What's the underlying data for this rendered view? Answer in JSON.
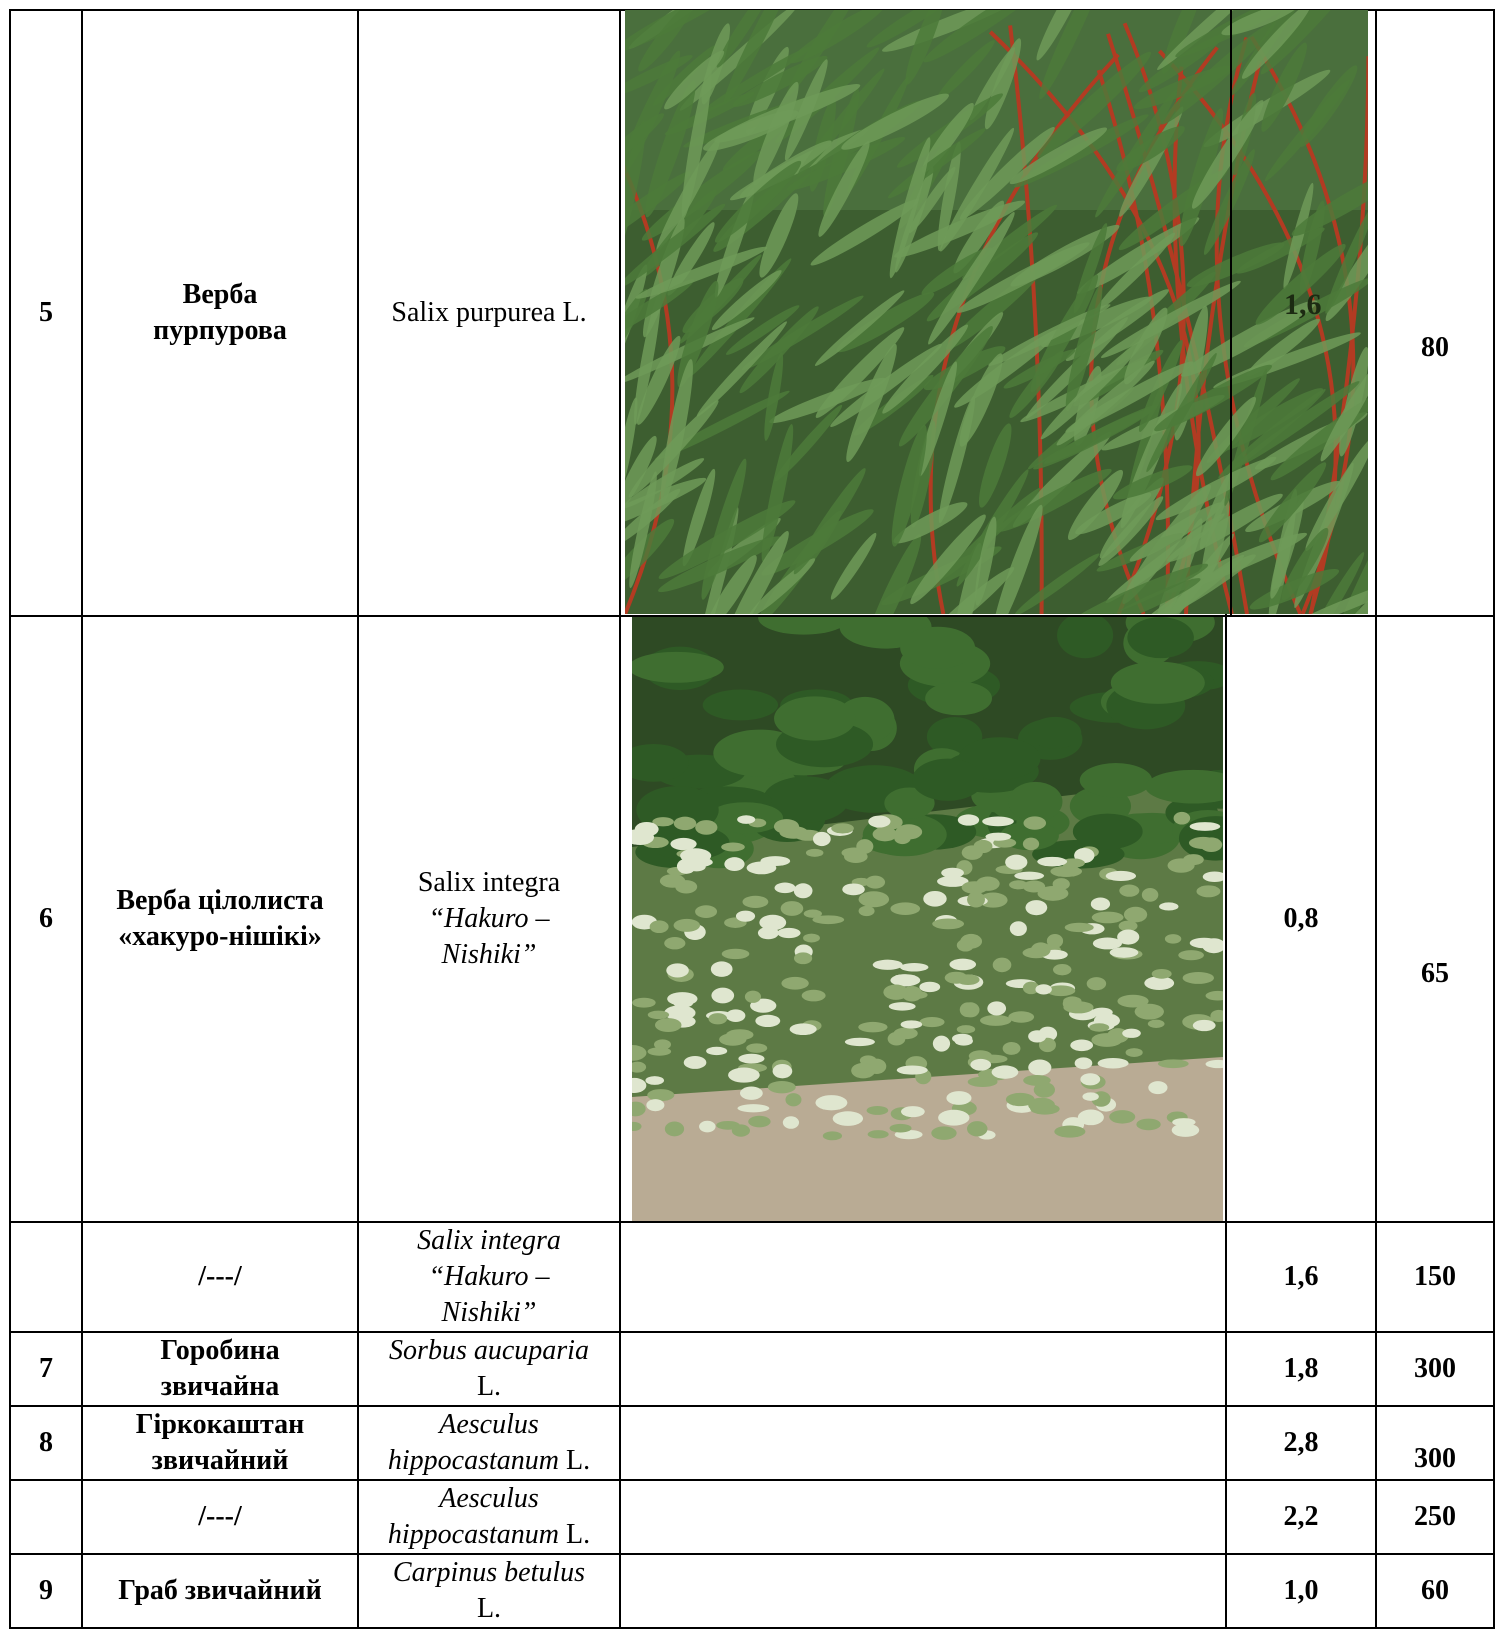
{
  "rows": [
    {
      "num": "5",
      "name_line1": "Верба",
      "name_line2": "пурпурова",
      "latin": "Salix purpurea L.",
      "photo": "willow-purple-photo",
      "height": "1,6",
      "age": "80"
    },
    {
      "num": "6",
      "name_line1": "Верба цілолиста",
      "name_line2": "«хакуро-нішікі»",
      "latin_line1": "Salix integra",
      "latin_line2": "“Hakuro –",
      "latin_line3": "Nishiki”",
      "photo": "willow-hakuro-photo",
      "height": "0,8",
      "age": "65"
    },
    {
      "num": "",
      "name": "/---/",
      "latin_line1": "Salix integra",
      "latin_line2": "“Hakuro –",
      "latin_line3": "Nishiki”",
      "height": "1,6",
      "age": "150"
    },
    {
      "num": "7",
      "name_line1": "Горобина",
      "name_line2": "звичайна",
      "latin_line1": "Sorbus aucuparia",
      "latin_line2": "L.",
      "height": "1,8",
      "age": "300"
    },
    {
      "num": "8",
      "name_line1": "Гіркокаштан",
      "name_line2": "звичайний",
      "latin_line1": "Aesculus",
      "latin_line2a": "hippocastanum",
      "latin_line2b": " L.",
      "height": "2,8",
      "age": "300"
    },
    {
      "num": "",
      "name": "/---/",
      "latin_line1": "Aesculus",
      "latin_line2a": "hippocastanum",
      "latin_line2b": " L.",
      "height": "2,2",
      "age": "250"
    },
    {
      "num": "9",
      "name": "Граб звичайний",
      "latin_line1": "Carpinus betulus",
      "latin_line2": "L.",
      "height": "1,0",
      "age": "60"
    }
  ],
  "colors": {
    "leaf_dark": "#2f4f25",
    "leaf_mid": "#4c7a3a",
    "stem_red": "#b23b22",
    "sky": "#4a86c8",
    "soil": "#b9ab94"
  }
}
